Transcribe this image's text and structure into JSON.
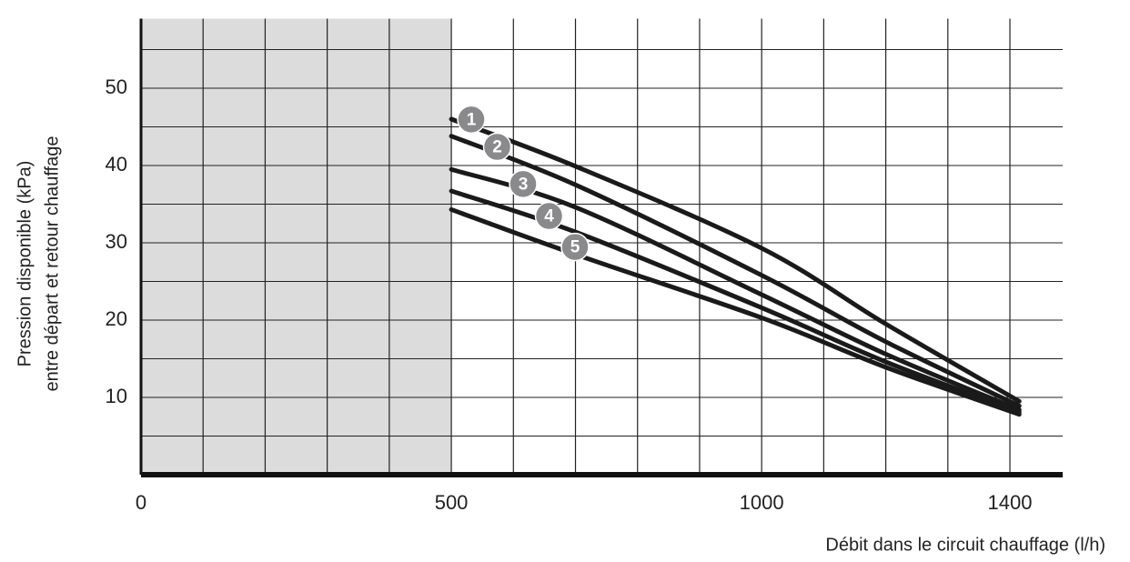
{
  "chart_data": {
    "type": "line",
    "x_label": "Débit dans le circuit chauffage (l/h)",
    "y_label": [
      "Pression disponible (kPa)",
      "entre départ et retour chauffage"
    ],
    "xlim": [
      0,
      1485
    ],
    "ylim": [
      0,
      59
    ],
    "xticks": [
      0,
      500,
      1000,
      1400
    ],
    "yticks": [
      10,
      20,
      30,
      40,
      50
    ],
    "xgrid": [
      100,
      200,
      300,
      400,
      500,
      600,
      700,
      800,
      900,
      1000,
      1100,
      1200,
      1300,
      1400
    ],
    "ygrid": [
      5,
      10,
      15,
      20,
      25,
      30,
      35,
      40,
      45,
      50,
      55
    ],
    "shaded_range": [
      0,
      500
    ],
    "x": [
      500,
      700,
      1000,
      1200,
      1415
    ],
    "series": [
      {
        "name": "1",
        "color": "#1a1a1a",
        "values": [
          46,
          39.9,
          29.3,
          19.5,
          9.5
        ]
      },
      {
        "name": "2",
        "color": "#1a1a1a",
        "values": [
          43.8,
          37.5,
          25.8,
          17.2,
          8.9
        ]
      },
      {
        "name": "3",
        "color": "#1a1a1a",
        "values": [
          39.5,
          34.6,
          23.3,
          15.6,
          8.4
        ]
      },
      {
        "name": "4",
        "color": "#1a1a1a",
        "values": [
          36.7,
          31.4,
          21.6,
          14.6,
          8.1
        ]
      },
      {
        "name": "5",
        "color": "#1a1a1a",
        "values": [
          34.3,
          28.5,
          20.3,
          13.9,
          7.8
        ]
      }
    ]
  }
}
